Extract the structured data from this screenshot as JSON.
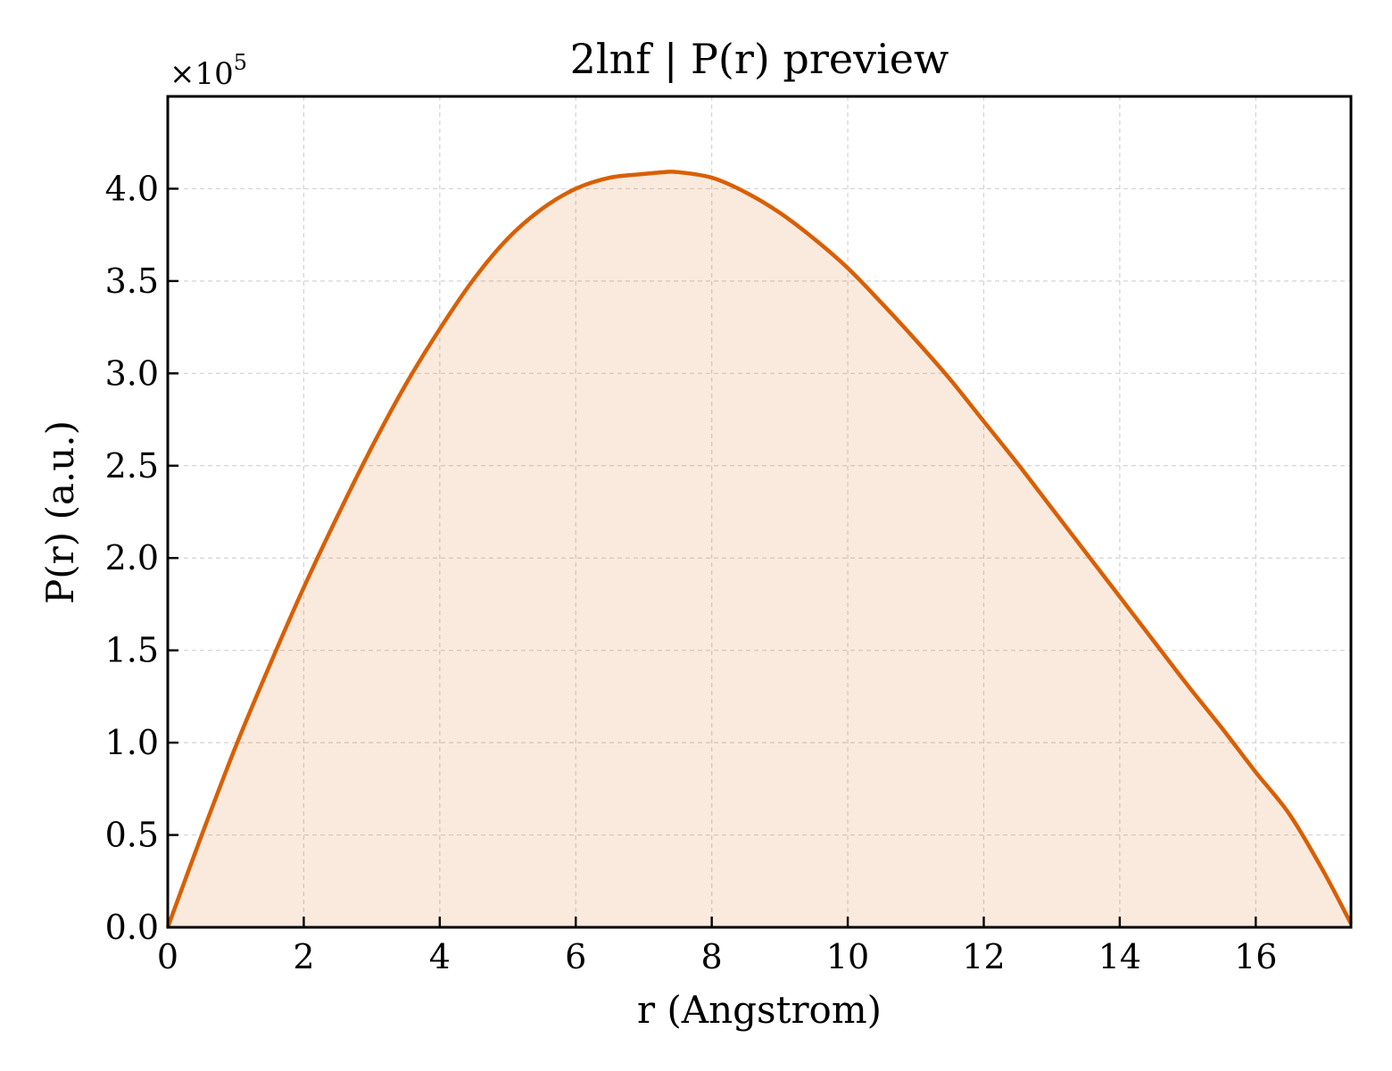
{
  "chart_data": {
    "type": "area",
    "title": "2lnf | P(r) preview",
    "xlabel": "r (Angstrom)",
    "ylabel": "P(r) (a.u.)",
    "y_multiplier_label": "×10",
    "y_multiplier_exponent": "5",
    "xlim": [
      0,
      17.4
    ],
    "ylim": [
      0,
      4.5
    ],
    "xticks": [
      0,
      2,
      4,
      6,
      8,
      10,
      12,
      14,
      16
    ],
    "xtick_labels": [
      "0",
      "2",
      "4",
      "6",
      "8",
      "10",
      "12",
      "14",
      "16"
    ],
    "yticks": [
      0,
      0.5,
      1.0,
      1.5,
      2.0,
      2.5,
      3.0,
      3.5,
      4.0
    ],
    "ytick_labels": [
      "0.0",
      "0.5",
      "1.0",
      "1.5",
      "2.0",
      "2.5",
      "3.0",
      "3.5",
      "4.0"
    ],
    "grid": true,
    "series": [
      {
        "color": "#d95f02",
        "fill_color": "#d95f02",
        "fill_opacity": 0.13,
        "x": [
          0,
          0.5,
          1,
          1.5,
          2,
          2.5,
          3,
          3.5,
          4,
          4.5,
          5,
          5.5,
          6,
          6.5,
          7,
          7.3,
          7.5,
          8,
          8.5,
          9,
          9.5,
          10,
          10.5,
          11,
          11.5,
          12,
          12.5,
          13,
          13.5,
          14,
          14.5,
          15,
          15.5,
          16,
          16.5,
          17,
          17.4
        ],
        "y": [
          0,
          0.5,
          0.98,
          1.42,
          1.84,
          2.23,
          2.6,
          2.94,
          3.24,
          3.51,
          3.73,
          3.89,
          4.0,
          4.06,
          4.08,
          4.09,
          4.09,
          4.06,
          3.98,
          3.87,
          3.73,
          3.57,
          3.38,
          3.18,
          2.97,
          2.74,
          2.51,
          2.27,
          2.03,
          1.79,
          1.55,
          1.31,
          1.08,
          0.84,
          0.61,
          0.3,
          0.02
        ]
      }
    ]
  }
}
